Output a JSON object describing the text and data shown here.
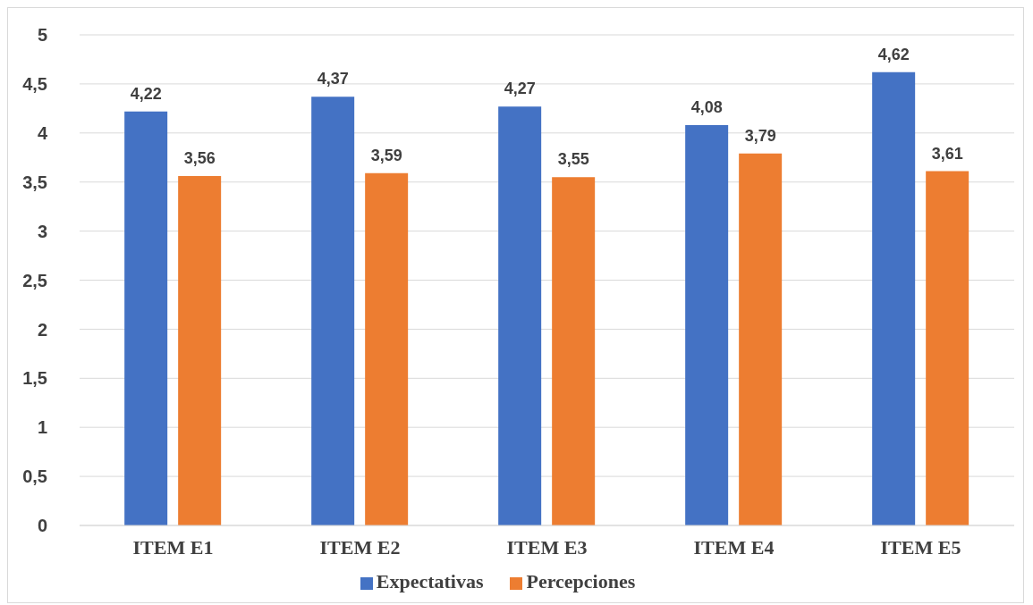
{
  "chart_data": {
    "type": "bar",
    "categories": [
      "ITEM E1",
      "ITEM E2",
      "ITEM E3",
      "ITEM E4",
      "ITEM E5"
    ],
    "series": [
      {
        "name": "Expectativas",
        "color": "#4472c4",
        "values": [
          4.22,
          4.37,
          4.27,
          4.08,
          4.62
        ],
        "value_labels": [
          "4,22",
          "4,37",
          "4,27",
          "4,08",
          "4,62"
        ]
      },
      {
        "name": "Percepciones",
        "color": "#ed7d31",
        "values": [
          3.56,
          3.59,
          3.55,
          3.79,
          3.61
        ],
        "value_labels": [
          "3,56",
          "3,59",
          "3,55",
          "3,79",
          "3,61"
        ]
      }
    ],
    "ylim": [
      0,
      5
    ],
    "yticks": [
      0,
      {
        "value": 0.5,
        "label": "0,5"
      },
      1,
      {
        "value": 1.5,
        "label": "1,5"
      },
      2,
      {
        "value": 2.5,
        "label": "2,5"
      },
      3,
      {
        "value": 3.5,
        "label": "3,5"
      },
      4,
      {
        "value": 4.5,
        "label": "4,5"
      },
      5
    ],
    "grid": "y",
    "legend": "bottom"
  }
}
